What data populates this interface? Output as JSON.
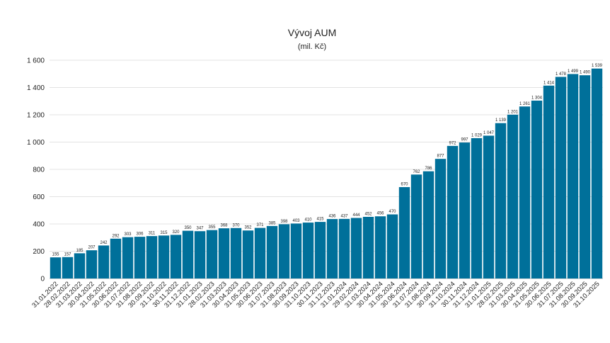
{
  "chart_data": {
    "type": "bar",
    "title": "Vývoj AUM",
    "subtitle": "(mil. Kč)",
    "xlabel": "",
    "ylabel": "",
    "ylim": [
      0,
      1600
    ],
    "yticks": [
      0,
      200,
      400,
      600,
      800,
      1000,
      1200,
      1400,
      1600
    ],
    "grid": true,
    "legend": "none",
    "bar_color": "#00709a",
    "categories": [
      "31.01.2022",
      "28.02.2022",
      "31.03.2022",
      "30.04.2022",
      "31.05.2022",
      "30.06.2022",
      "31.07.2022",
      "31.08.2022",
      "30.09.2022",
      "31.10.2022",
      "30.11.2022",
      "31.12.2022",
      "31.01.2023",
      "28.02.2023",
      "31.03.2023",
      "30.04.2023",
      "31.05.2023",
      "30.06.2023",
      "31.07.2023",
      "31.08.2023",
      "30.09.2023",
      "31.10.2023",
      "30.11.2023",
      "31.12.2023",
      "31.01.2024",
      "29.02.2024",
      "31.03.2024",
      "30.04.2024",
      "31.05.2024",
      "30.06.2024",
      "31.07.2024",
      "31.08.2024",
      "30.09.2024",
      "31.10.2024",
      "30.11.2024",
      "31.12.2024",
      "31.01.2025",
      "28.02.2025",
      "31.03.2025",
      "30.04.2025",
      "31.05.2025",
      "30.06.2025",
      "31.07.2025",
      "31.08.2025",
      "30.09.2025",
      "31.10.2025"
    ],
    "values": [
      155,
      157,
      185,
      207,
      242,
      292,
      303,
      306,
      311,
      315,
      320,
      350,
      347,
      355,
      368,
      370,
      352,
      371,
      385,
      398,
      403,
      410,
      415,
      436,
      437,
      444,
      452,
      456,
      470,
      670,
      762,
      786,
      877,
      972,
      997,
      1029,
      1047,
      1139,
      1201,
      1261,
      1304,
      1414,
      1478,
      1499,
      1490,
      1539
    ]
  }
}
